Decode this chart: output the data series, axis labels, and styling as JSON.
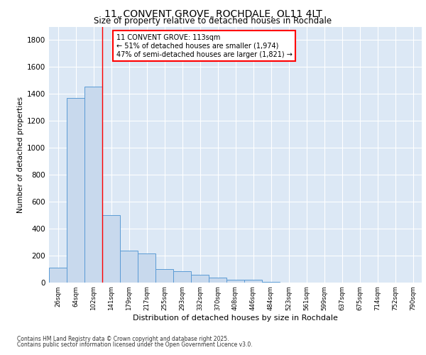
{
  "title": "11, CONVENT GROVE, ROCHDALE, OL11 4LT",
  "subtitle": "Size of property relative to detached houses in Rochdale",
  "xlabel": "Distribution of detached houses by size in Rochdale",
  "ylabel": "Number of detached properties",
  "categories": [
    "26sqm",
    "64sqm",
    "102sqm",
    "141sqm",
    "179sqm",
    "217sqm",
    "255sqm",
    "293sqm",
    "332sqm",
    "370sqm",
    "408sqm",
    "446sqm",
    "484sqm",
    "523sqm",
    "561sqm",
    "599sqm",
    "637sqm",
    "675sqm",
    "714sqm",
    "752sqm",
    "790sqm"
  ],
  "values": [
    110,
    1370,
    1455,
    500,
    235,
    215,
    100,
    80,
    55,
    35,
    20,
    20,
    5,
    0,
    0,
    0,
    0,
    0,
    0,
    0,
    0
  ],
  "bar_color": "#c8d9ed",
  "bar_edge_color": "#5b9bd5",
  "vline_x_index": 2,
  "vline_color": "red",
  "annotation_text": "11 CONVENT GROVE: 113sqm\n← 51% of detached houses are smaller (1,974)\n47% of semi-detached houses are larger (1,821) →",
  "annotation_box_color": "white",
  "annotation_box_edge_color": "red",
  "ylim": [
    0,
    1900
  ],
  "yticks": [
    0,
    200,
    400,
    600,
    800,
    1000,
    1200,
    1400,
    1600,
    1800
  ],
  "background_color": "#dce8f5",
  "footer1": "Contains HM Land Registry data © Crown copyright and database right 2025.",
  "footer2": "Contains public sector information licensed under the Open Government Licence v3.0."
}
